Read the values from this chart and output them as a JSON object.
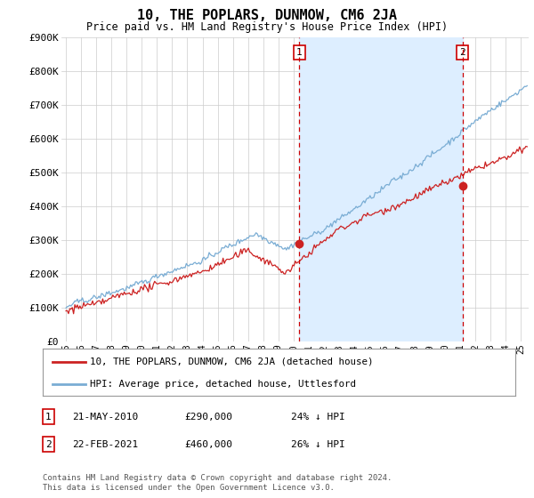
{
  "title": "10, THE POPLARS, DUNMOW, CM6 2JA",
  "subtitle": "Price paid vs. HM Land Registry's House Price Index (HPI)",
  "ylim": [
    0,
    900000
  ],
  "yticks": [
    0,
    100000,
    200000,
    300000,
    400000,
    500000,
    600000,
    700000,
    800000,
    900000
  ],
  "ytick_labels": [
    "£0",
    "£100K",
    "£200K",
    "£300K",
    "£400K",
    "£500K",
    "£600K",
    "£700K",
    "£800K",
    "£900K"
  ],
  "hpi_color": "#7aadd4",
  "hpi_fill_color": "#ddeeff",
  "price_color": "#cc2222",
  "vline_color": "#cc0000",
  "sale1_date": 2010.38,
  "sale1_price": 290000,
  "sale2_date": 2021.13,
  "sale2_price": 460000,
  "legend_price_label": "10, THE POPLARS, DUNMOW, CM6 2JA (detached house)",
  "legend_hpi_label": "HPI: Average price, detached house, Uttlesford",
  "footnote": "Contains HM Land Registry data © Crown copyright and database right 2024.\nThis data is licensed under the Open Government Licence v3.0.",
  "bg_color": "#ffffff",
  "grid_color": "#cccccc",
  "xmin": 1994.7,
  "xmax": 2025.5,
  "seed": 42
}
